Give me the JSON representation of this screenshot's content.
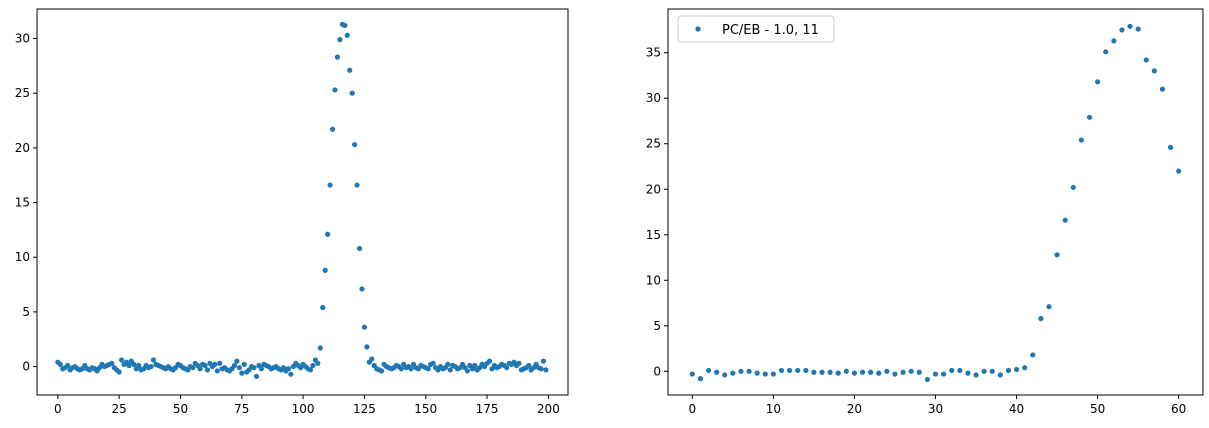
{
  "chart_data": [
    {
      "type": "scatter",
      "marker_color": "#1f77b4",
      "xlim": [
        -8.5,
        208
      ],
      "ylim": [
        -2.6,
        32.7
      ],
      "xticks": [
        0,
        25,
        50,
        75,
        100,
        125,
        150,
        175,
        200
      ],
      "yticks": [
        0,
        5,
        10,
        15,
        20,
        25,
        30
      ],
      "x_start": 0,
      "y": [
        0.4,
        0.2,
        -0.2,
        -0.1,
        0.1,
        -0.3,
        -0.1,
        0.0,
        -0.2,
        -0.3,
        -0.2,
        0.1,
        -0.2,
        -0.3,
        -0.1,
        -0.2,
        -0.4,
        -0.1,
        0.2,
        0.0,
        0.1,
        0.2,
        0.3,
        -0.1,
        -0.3,
        -0.5,
        0.6,
        0.2,
        0.4,
        0.1,
        0.5,
        0.2,
        -0.2,
        0.1,
        -0.3,
        -0.2,
        0.1,
        -0.1,
        0.0,
        0.6,
        0.2,
        0.1,
        0.0,
        -0.1,
        -0.2,
        0.0,
        -0.2,
        -0.3,
        -0.1,
        0.2,
        0.1,
        -0.1,
        -0.2,
        -0.3,
        0.0,
        -0.1,
        0.3,
        0.1,
        -0.2,
        0.2,
        0.1,
        -0.3,
        0.3,
        0.0,
        0.2,
        -0.4,
        0.3,
        -0.2,
        -0.1,
        -0.3,
        -0.4,
        -0.2,
        0.1,
        0.5,
        -0.1,
        -0.6,
        0.2,
        -0.5,
        -0.3,
        0.0,
        -0.1,
        -0.9,
        0.1,
        -0.2,
        0.2,
        0.1,
        0.0,
        -0.2,
        -0.1,
        0.0,
        -0.2,
        -0.3,
        -0.1,
        -0.4,
        -0.2,
        -0.7,
        0.0,
        0.3,
        0.1,
        -0.1,
        0.2,
        0.0,
        -0.2,
        -0.3,
        0.1,
        0.6,
        0.3,
        1.7,
        5.4,
        8.8,
        12.1,
        16.6,
        21.7,
        25.3,
        28.3,
        29.9,
        31.3,
        31.2,
        30.3,
        27.1,
        25.0,
        20.3,
        16.6,
        10.8,
        7.1,
        3.6,
        1.8,
        0.4,
        0.7,
        0.1,
        -0.2,
        -0.3,
        -0.4,
        0.2,
        0.0,
        -0.1,
        -0.2,
        -0.1,
        0.1,
        0.0,
        -0.2,
        0.2,
        -0.1,
        0.0,
        -0.2,
        0.2,
        -0.1,
        -0.2,
        0.1,
        0.0,
        -0.1,
        -0.2,
        0.2,
        0.3,
        -0.1,
        -0.3,
        0.0,
        -0.2,
        -0.1,
        0.2,
        -0.3,
        0.1,
        0.0,
        -0.2,
        -0.1,
        0.2,
        -0.1,
        -0.4,
        0.1,
        -0.2,
        0.1,
        -0.3,
        -0.1,
        0.2,
        0.0,
        0.3,
        0.5,
        -0.2,
        0.1,
        -0.1,
        0.0,
        0.2,
        0.1,
        -0.1,
        0.3,
        0.2,
        0.4,
        0.1,
        0.3,
        -0.3,
        -0.2,
        -0.1,
        0.1,
        -0.3,
        -0.1,
        0.2,
        -0.1,
        -0.2,
        0.5,
        -0.3
      ]
    },
    {
      "type": "scatter",
      "marker_color": "#1f77b4",
      "legend": "PC/EB - 1.0, 11",
      "legend_position": "top-left",
      "xlim": [
        -3,
        63
      ],
      "ylim": [
        -2.6,
        39.8
      ],
      "xticks": [
        0,
        10,
        20,
        30,
        40,
        50,
        60
      ],
      "yticks": [
        0,
        5,
        10,
        15,
        20,
        25,
        30,
        35
      ],
      "x_start": 0,
      "y": [
        -0.3,
        -0.8,
        0.1,
        -0.1,
        -0.4,
        -0.2,
        0.0,
        0.0,
        -0.2,
        -0.3,
        -0.3,
        0.1,
        0.1,
        0.1,
        0.1,
        -0.1,
        -0.1,
        -0.1,
        -0.2,
        0.0,
        -0.2,
        -0.1,
        -0.1,
        -0.2,
        0.0,
        -0.3,
        -0.1,
        0.0,
        -0.1,
        -0.9,
        -0.3,
        -0.3,
        0.1,
        0.1,
        -0.2,
        -0.4,
        0.0,
        0.0,
        -0.4,
        0.1,
        0.2,
        0.4,
        1.8,
        5.8,
        7.1,
        12.8,
        16.6,
        20.2,
        25.4,
        27.9,
        31.8,
        35.1,
        36.3,
        37.5,
        37.9,
        37.6,
        34.2,
        33.0,
        31.0,
        24.6,
        22.0
      ]
    }
  ]
}
